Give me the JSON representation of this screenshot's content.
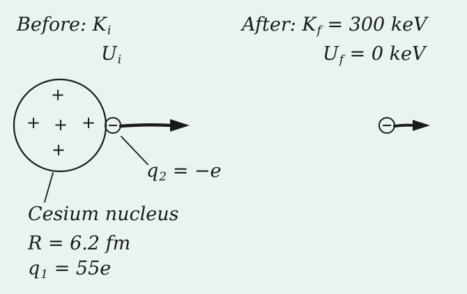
{
  "before": {
    "label": "Before: K",
    "k_sub": "i",
    "u_symbol": "U",
    "u_sub": "i"
  },
  "after": {
    "label": "After: K",
    "k_sub": "f",
    "k_value": "= 300 keV",
    "u_symbol": "U",
    "u_sub": "f",
    "u_value": "= 0 keV"
  },
  "nucleus": {
    "charge_symbols": [
      "+",
      "+",
      "+",
      "+",
      "+"
    ],
    "name": "Cesium nucleus",
    "radius": "R = 6.2 fm",
    "charge_symbol": "q",
    "charge_sub": "1",
    "charge_value": "= 55e"
  },
  "electron": {
    "charge_glyph": "−",
    "label_symbol": "q",
    "label_sub": "2",
    "label_value": "= −e"
  },
  "colors": {
    "background": "#e9f4ef",
    "ink": "#1a1a1a"
  }
}
